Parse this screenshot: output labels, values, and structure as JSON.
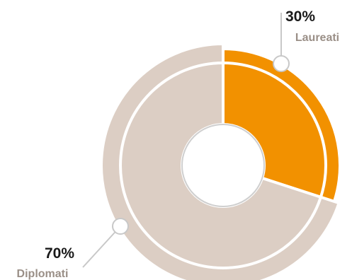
{
  "chart_data": {
    "type": "pie",
    "variant": "donut",
    "title": "",
    "slices": [
      {
        "label": "Laureati",
        "value": 30,
        "value_label": "30%",
        "color": "#F29100"
      },
      {
        "label": "Diplomati",
        "value": 70,
        "value_label": "70%",
        "color": "#DCCEC4"
      }
    ],
    "legend": "none",
    "label_color": "#9A8F87"
  }
}
